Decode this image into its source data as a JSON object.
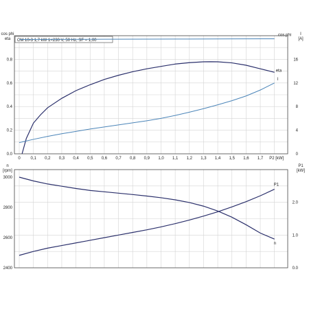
{
  "chart_data": [
    {
      "type": "line",
      "title": "CM 10-3   1,7 kW   1×230 V, 50 Hz, SF = 1,00",
      "x": {
        "label": "P2 [kW]",
        "ticks": [
          "0",
          "0,1",
          "0,2",
          "0,3",
          "0,4",
          "0,5",
          "0,6",
          "0,7",
          "0,8",
          "0,9",
          "1,0",
          "1,1",
          "1,2",
          "1,3",
          "1,4",
          "1,5",
          "1,6",
          "1,7"
        ],
        "lim": [
          0,
          1.8
        ]
      },
      "y_left": {
        "label_lines": [
          "cos phi",
          "eta"
        ],
        "ticks": [
          "0.0",
          "0.2",
          "0.4",
          "0.6",
          "0.8"
        ],
        "lim": [
          0,
          1.0
        ]
      },
      "y_right": {
        "label_lines": [
          "I",
          "[A]"
        ],
        "ticks": [
          "0",
          "4",
          "8",
          "12",
          "16"
        ],
        "lim": [
          0,
          20
        ]
      },
      "grid": true,
      "series": [
        {
          "name": "cos phi",
          "axis": "left",
          "color": "#4a84b8",
          "x": [
            0,
            0.3,
            0.6,
            0.9,
            1.2,
            1.5,
            1.8
          ],
          "y": [
            0.968,
            0.969,
            0.97,
            0.971,
            0.972,
            0.973,
            0.974
          ]
        },
        {
          "name": "eta",
          "axis": "left",
          "color": "#2a2f6b",
          "x": [
            0.02,
            0.05,
            0.1,
            0.15,
            0.2,
            0.3,
            0.4,
            0.5,
            0.6,
            0.7,
            0.8,
            0.9,
            1.0,
            1.1,
            1.2,
            1.3,
            1.35,
            1.4,
            1.5,
            1.6,
            1.7,
            1.8
          ],
          "y": [
            0.0,
            0.13,
            0.26,
            0.33,
            0.39,
            0.47,
            0.535,
            0.585,
            0.63,
            0.665,
            0.695,
            0.72,
            0.74,
            0.76,
            0.772,
            0.779,
            0.78,
            0.779,
            0.77,
            0.75,
            0.72,
            0.69
          ]
        },
        {
          "name": "I",
          "axis": "right",
          "color": "#4a84b8",
          "x": [
            0,
            0.1,
            0.2,
            0.3,
            0.4,
            0.5,
            0.6,
            0.7,
            0.8,
            0.9,
            1.0,
            1.1,
            1.2,
            1.3,
            1.4,
            1.5,
            1.6,
            1.7,
            1.8
          ],
          "y": [
            1.9,
            2.45,
            2.95,
            3.4,
            3.8,
            4.2,
            4.55,
            4.9,
            5.25,
            5.6,
            6.0,
            6.5,
            7.05,
            7.65,
            8.3,
            9.0,
            9.8,
            10.8,
            12.0
          ]
        }
      ]
    },
    {
      "type": "line",
      "x": {
        "lim": [
          0,
          1.8
        ]
      },
      "y_left": {
        "label_lines": [
          "n",
          "[rpm]"
        ],
        "ticks": [
          "2400",
          "2600",
          "2800",
          "3000"
        ],
        "lim": [
          2400,
          3050
        ]
      },
      "y_right": {
        "label_lines": [
          "P1",
          "[kW]"
        ],
        "ticks": [
          "0.0",
          "1.0",
          "2.0"
        ],
        "lim": [
          0,
          3.0
        ]
      },
      "grid": true,
      "series": [
        {
          "name": "n",
          "axis": "left",
          "color": "#2a2f6b",
          "x": [
            0,
            0.1,
            0.2,
            0.3,
            0.4,
            0.5,
            0.6,
            0.7,
            0.8,
            0.9,
            1.0,
            1.1,
            1.2,
            1.3,
            1.4,
            1.5,
            1.6,
            1.7,
            1.8
          ],
          "y": [
            3000,
            2975,
            2955,
            2940,
            2925,
            2912,
            2903,
            2894,
            2885,
            2875,
            2864,
            2850,
            2832,
            2808,
            2776,
            2735,
            2685,
            2630,
            2590
          ]
        },
        {
          "name": "P1",
          "axis": "right",
          "color": "#2a2f6b",
          "x": [
            0,
            0.1,
            0.2,
            0.3,
            0.4,
            0.5,
            0.6,
            0.7,
            0.8,
            0.9,
            1.0,
            1.1,
            1.2,
            1.3,
            1.4,
            1.5,
            1.6,
            1.7,
            1.8
          ],
          "y": [
            0.38,
            0.5,
            0.6,
            0.68,
            0.76,
            0.84,
            0.92,
            1.0,
            1.08,
            1.16,
            1.25,
            1.35,
            1.46,
            1.58,
            1.71,
            1.86,
            2.02,
            2.2,
            2.4
          ]
        }
      ]
    }
  ]
}
